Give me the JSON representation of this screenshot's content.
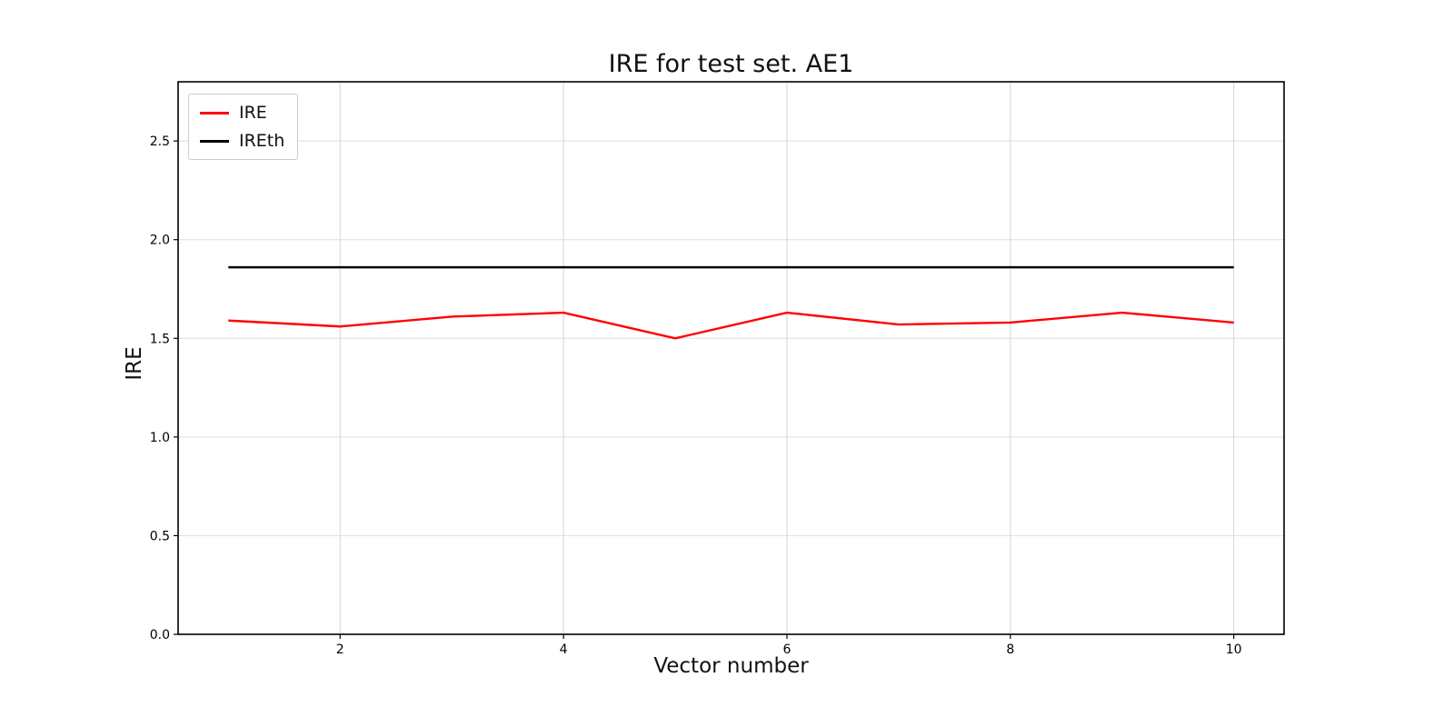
{
  "figure": {
    "title": "IRE for test set. AE1",
    "xlabel": "Vector number",
    "ylabel": "IRE"
  },
  "legend": {
    "entries": [
      {
        "label": "IRE",
        "color": "#ff0000"
      },
      {
        "label": "IREth",
        "color": "#000000"
      }
    ]
  },
  "chart_data": {
    "type": "line",
    "title": "IRE for test set. AE1",
    "xlabel": "Vector number",
    "ylabel": "IRE",
    "x": [
      1,
      2,
      3,
      4,
      5,
      6,
      7,
      8,
      9,
      10
    ],
    "series": [
      {
        "name": "IRE",
        "color": "#ff0000",
        "values": [
          1.59,
          1.56,
          1.61,
          1.63,
          1.5,
          1.63,
          1.57,
          1.58,
          1.63,
          1.58
        ]
      },
      {
        "name": "IREth",
        "color": "#000000",
        "values": [
          1.86,
          1.86,
          1.86,
          1.86,
          1.86,
          1.86,
          1.86,
          1.86,
          1.86,
          1.86
        ]
      }
    ],
    "xticks": [
      2,
      4,
      6,
      8,
      10
    ],
    "yticks": [
      0.0,
      0.5,
      1.0,
      1.5,
      2.0,
      2.5
    ],
    "xlim": [
      0.55,
      10.45
    ],
    "ylim": [
      0,
      2.8
    ],
    "grid": true,
    "legend_position": "upper left"
  }
}
